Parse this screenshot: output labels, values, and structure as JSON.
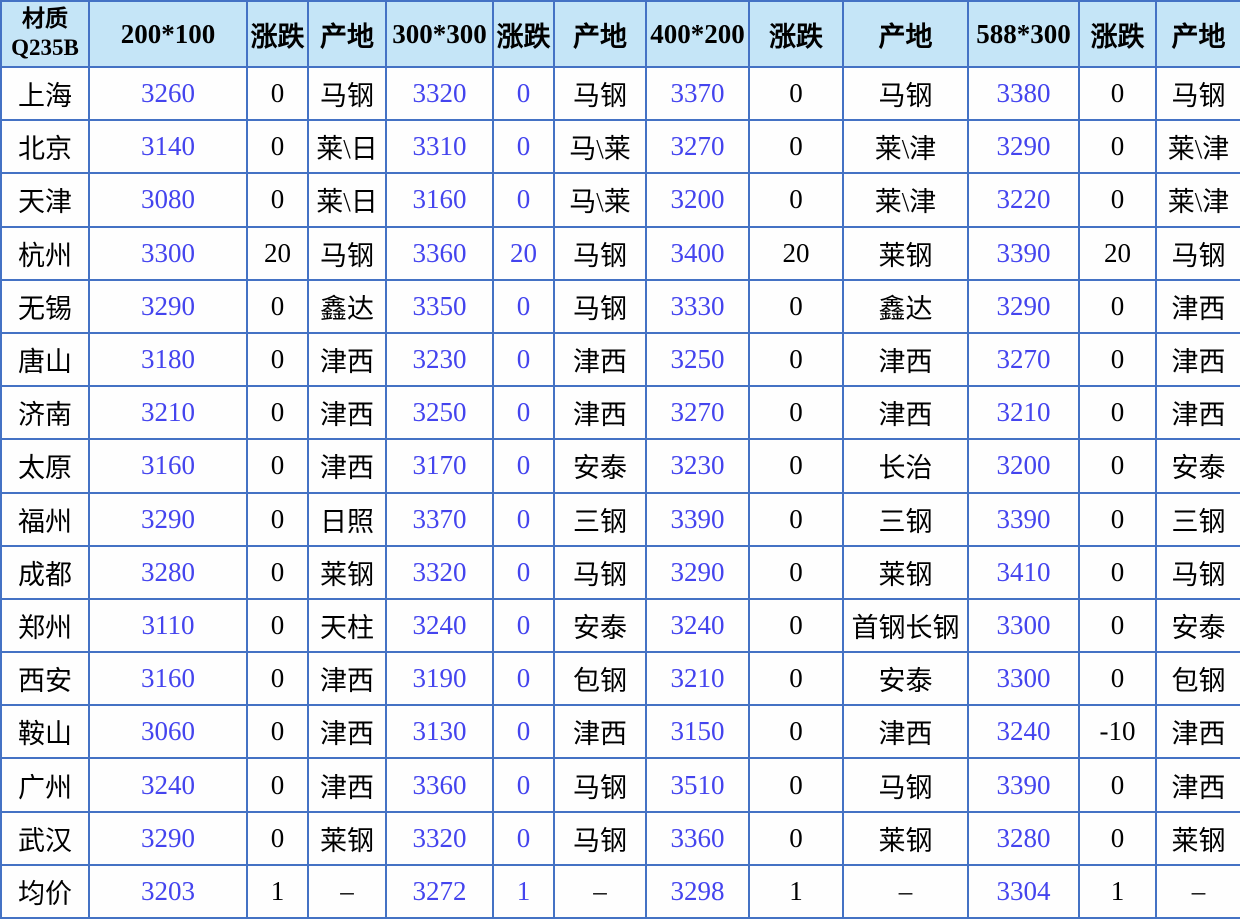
{
  "colors": {
    "border": "#4472C4",
    "header_bg": "#C5E5F7",
    "value_text": "#4444EE",
    "label_text": "#000000",
    "cell_bg": "#FEFEFE"
  },
  "chart_data": {
    "type": "table",
    "title": "",
    "header": {
      "material": {
        "line1": "材质",
        "line2": "Q235B"
      },
      "cells": [
        "200*100",
        "涨跌",
        "产地",
        "300*300",
        "涨跌",
        "产地",
        "400*200",
        "涨跌",
        "产地",
        "588*300",
        "涨跌",
        "产地"
      ]
    },
    "column_kinds": [
      "city",
      "price",
      "change",
      "origin",
      "price",
      "change-blue",
      "origin",
      "price",
      "change",
      "origin",
      "price",
      "change",
      "origin"
    ],
    "rows": [
      [
        "上海",
        "3260",
        "0",
        "马钢",
        "3320",
        "0",
        "马钢",
        "3370",
        "0",
        "马钢",
        "3380",
        "0",
        "马钢"
      ],
      [
        "北京",
        "3140",
        "0",
        "莱\\日",
        "3310",
        "0",
        "马\\莱",
        "3270",
        "0",
        "莱\\津",
        "3290",
        "0",
        "莱\\津"
      ],
      [
        "天津",
        "3080",
        "0",
        "莱\\日",
        "3160",
        "0",
        "马\\莱",
        "3200",
        "0",
        "莱\\津",
        "3220",
        "0",
        "莱\\津"
      ],
      [
        "杭州",
        "3300",
        "20",
        "马钢",
        "3360",
        "20",
        "马钢",
        "3400",
        "20",
        "莱钢",
        "3390",
        "20",
        "马钢"
      ],
      [
        "无锡",
        "3290",
        "0",
        "鑫达",
        "3350",
        "0",
        "马钢",
        "3330",
        "0",
        "鑫达",
        "3290",
        "0",
        "津西"
      ],
      [
        "唐山",
        "3180",
        "0",
        "津西",
        "3230",
        "0",
        "津西",
        "3250",
        "0",
        "津西",
        "3270",
        "0",
        "津西"
      ],
      [
        "济南",
        "3210",
        "0",
        "津西",
        "3250",
        "0",
        "津西",
        "3270",
        "0",
        "津西",
        "3210",
        "0",
        "津西"
      ],
      [
        "太原",
        "3160",
        "0",
        "津西",
        "3170",
        "0",
        "安泰",
        "3230",
        "0",
        "长治",
        "3200",
        "0",
        "安泰"
      ],
      [
        "福州",
        "3290",
        "0",
        "日照",
        "3370",
        "0",
        "三钢",
        "3390",
        "0",
        "三钢",
        "3390",
        "0",
        "三钢"
      ],
      [
        "成都",
        "3280",
        "0",
        "莱钢",
        "3320",
        "0",
        "马钢",
        "3290",
        "0",
        "莱钢",
        "3410",
        "0",
        "马钢"
      ],
      [
        "郑州",
        "3110",
        "0",
        "天柱",
        "3240",
        "0",
        "安泰",
        "3240",
        "0",
        "首钢长钢",
        "3300",
        "0",
        "安泰"
      ],
      [
        "西安",
        "3160",
        "0",
        "津西",
        "3190",
        "0",
        "包钢",
        "3210",
        "0",
        "安泰",
        "3300",
        "0",
        "包钢"
      ],
      [
        "鞍山",
        "3060",
        "0",
        "津西",
        "3130",
        "0",
        "津西",
        "3150",
        "0",
        "津西",
        "3240",
        "-10",
        "津西"
      ],
      [
        "广州",
        "3240",
        "0",
        "津西",
        "3360",
        "0",
        "马钢",
        "3510",
        "0",
        "马钢",
        "3390",
        "0",
        "津西"
      ],
      [
        "武汉",
        "3290",
        "0",
        "莱钢",
        "3320",
        "0",
        "马钢",
        "3360",
        "0",
        "莱钢",
        "3280",
        "0",
        "莱钢"
      ],
      [
        "均价",
        "3203",
        "1",
        "–",
        "3272",
        "1",
        "–",
        "3298",
        "1",
        "–",
        "3304",
        "1",
        "–"
      ]
    ]
  }
}
